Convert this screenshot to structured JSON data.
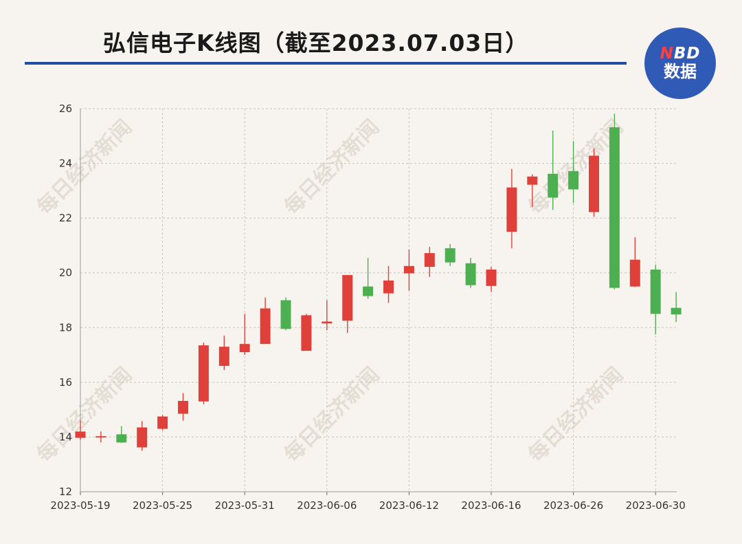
{
  "header": {
    "title": "弘信电子K线图（截至2023.07.03日）",
    "logo_line1_n": "N",
    "logo_line1_rest": "BD",
    "logo_line2": "数据"
  },
  "watermark_text": "每日经济新闻",
  "colors": {
    "up": "#e0403a",
    "down": "#4caf50",
    "grid": "#c8c4be",
    "rule": "#1f4fa0",
    "logo": "#2f5ab5"
  },
  "chart_data": {
    "type": "candlestick",
    "title": "弘信电子K线图（截至2023.07.03日）",
    "ylim": [
      12,
      26
    ],
    "y_ticks": [
      12,
      14,
      16,
      18,
      20,
      22,
      24,
      26
    ],
    "x_ticks": [
      {
        "label": "2023-05-19",
        "index": 0
      },
      {
        "label": "2023-05-25",
        "index": 4
      },
      {
        "label": "2023-05-31",
        "index": 8
      },
      {
        "label": "2023-06-06",
        "index": 12
      },
      {
        "label": "2023-06-12",
        "index": 16
      },
      {
        "label": "2023-06-16",
        "index": 20
      },
      {
        "label": "2023-06-26",
        "index": 24
      },
      {
        "label": "2023-06-30",
        "index": 28
      }
    ],
    "candles": [
      {
        "open": 13.97,
        "close": 14.2,
        "low": 13.9,
        "high": 14.6,
        "dir": "up"
      },
      {
        "open": 13.98,
        "close": 14.03,
        "low": 13.8,
        "high": 14.2,
        "dir": "up"
      },
      {
        "open": 14.1,
        "close": 13.8,
        "low": 13.78,
        "high": 14.4,
        "dir": "down"
      },
      {
        "open": 13.62,
        "close": 14.35,
        "low": 13.5,
        "high": 14.58,
        "dir": "up"
      },
      {
        "open": 14.3,
        "close": 14.75,
        "low": 14.25,
        "high": 14.8,
        "dir": "up"
      },
      {
        "open": 14.85,
        "close": 15.32,
        "low": 14.6,
        "high": 15.6,
        "dir": "up"
      },
      {
        "open": 15.3,
        "close": 17.35,
        "low": 15.2,
        "high": 17.45,
        "dir": "up"
      },
      {
        "open": 16.6,
        "close": 17.3,
        "low": 16.45,
        "high": 17.7,
        "dir": "up"
      },
      {
        "open": 17.1,
        "close": 17.4,
        "low": 17.0,
        "high": 18.5,
        "dir": "up"
      },
      {
        "open": 17.4,
        "close": 18.7,
        "low": 17.4,
        "high": 19.1,
        "dir": "up"
      },
      {
        "open": 19.0,
        "close": 17.95,
        "low": 17.9,
        "high": 19.1,
        "dir": "down"
      },
      {
        "open": 17.15,
        "close": 18.45,
        "low": 17.15,
        "high": 18.5,
        "dir": "up"
      },
      {
        "open": 18.15,
        "close": 18.22,
        "low": 17.9,
        "high": 19.0,
        "dir": "up"
      },
      {
        "open": 18.25,
        "close": 19.92,
        "low": 17.8,
        "high": 19.92,
        "dir": "up"
      },
      {
        "open": 19.5,
        "close": 19.15,
        "low": 19.05,
        "high": 20.55,
        "dir": "down"
      },
      {
        "open": 19.25,
        "close": 19.72,
        "low": 18.9,
        "high": 20.25,
        "dir": "up"
      },
      {
        "open": 19.98,
        "close": 20.25,
        "low": 19.35,
        "high": 20.85,
        "dir": "up"
      },
      {
        "open": 20.22,
        "close": 20.72,
        "low": 19.85,
        "high": 20.95,
        "dir": "up"
      },
      {
        "open": 20.9,
        "close": 20.38,
        "low": 20.25,
        "high": 21.05,
        "dir": "down"
      },
      {
        "open": 20.35,
        "close": 19.55,
        "low": 19.45,
        "high": 20.55,
        "dir": "down"
      },
      {
        "open": 19.52,
        "close": 20.12,
        "low": 19.3,
        "high": 20.22,
        "dir": "up"
      },
      {
        "open": 21.5,
        "close": 23.12,
        "low": 20.9,
        "high": 23.8,
        "dir": "up"
      },
      {
        "open": 23.22,
        "close": 23.52,
        "low": 22.4,
        "high": 23.6,
        "dir": "up"
      },
      {
        "open": 23.62,
        "close": 22.75,
        "low": 22.3,
        "high": 25.2,
        "dir": "down"
      },
      {
        "open": 23.72,
        "close": 23.05,
        "low": 22.55,
        "high": 24.82,
        "dir": "down"
      },
      {
        "open": 22.22,
        "close": 24.28,
        "low": 22.05,
        "high": 24.55,
        "dir": "up"
      },
      {
        "open": 25.32,
        "close": 19.45,
        "low": 19.4,
        "high": 25.82,
        "dir": "down"
      },
      {
        "open": 19.5,
        "close": 20.48,
        "low": 19.48,
        "high": 21.3,
        "dir": "up"
      },
      {
        "open": 20.12,
        "close": 18.5,
        "low": 17.75,
        "high": 20.3,
        "dir": "down"
      },
      {
        "open": 18.72,
        "close": 18.48,
        "low": 18.2,
        "high": 19.3,
        "dir": "down"
      }
    ]
  }
}
